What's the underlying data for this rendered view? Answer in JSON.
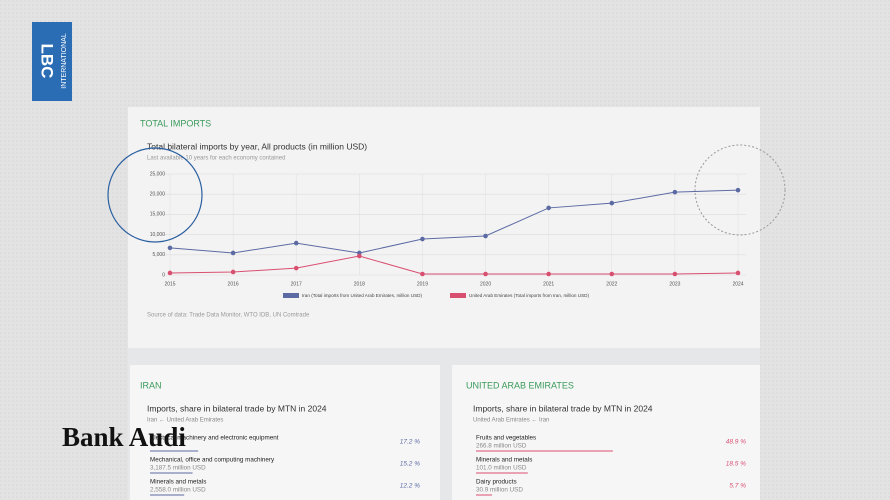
{
  "logo": {
    "top": "LBC",
    "side": "INTERNATIONAL"
  },
  "sponsor": "Bank Audi",
  "chart_data": {
    "type": "line",
    "section": "TOTAL IMPORTS",
    "title": "Total bilateral imports by year, All products (in million USD)",
    "subtitle": "Last available 10 years for each economy contained",
    "source": "Source of data: Trade Data Monitor, WTO IDB, UN Comtrade",
    "categories": [
      "2015",
      "2016",
      "2017",
      "2018",
      "2019",
      "2020",
      "2021",
      "2022",
      "2023",
      "2024"
    ],
    "series": [
      {
        "name": "Iran (Total imports from United Arab Emirates, million USD)",
        "color": "#5c6aa3",
        "values": [
          6700,
          5450,
          7900,
          5450,
          8900,
          9650,
          16600,
          17800,
          20500,
          21000
        ]
      },
      {
        "name": "United Arab Emirates (Total imports from Iran, million USD)",
        "color": "#d94f6f",
        "values": [
          500,
          750,
          1700,
          4700,
          250,
          250,
          250,
          250,
          250,
          500
        ]
      }
    ],
    "ylim": [
      0,
      25000
    ],
    "yticks": [
      0,
      {
        "value": 5000,
        "label": "5,000"
      },
      {
        "value": 10000,
        "label": "10,000"
      },
      {
        "value": 15000,
        "label": "15,000"
      },
      {
        "value": 20000,
        "label": "20,000"
      },
      {
        "value": 25000,
        "label": "25,000"
      }
    ],
    "grid": true
  },
  "panels": [
    {
      "title": "IRAN",
      "heading": "Imports, share in bilateral trade by MTN in 2024",
      "route": "Iran ← United Arab Emirates",
      "color": "#5c6aa3",
      "items": [
        {
          "name": "Electrical machinery and electronic equipment",
          "share": "17.2 %"
        },
        {
          "name": "Mechanical, office and computing machinery",
          "value": "3,187.5 million USD",
          "share": "15.2 %"
        },
        {
          "name": "Minerals and metals",
          "value": "2,558.0 million USD",
          "share": "12.2 %"
        }
      ]
    },
    {
      "title": "UNITED ARAB EMIRATES",
      "heading": "Imports, share in bilateral trade by MTN in 2024",
      "route": "United Arab Emirates ← Iran",
      "color": "#d94f6f",
      "items": [
        {
          "name": "Fruits and vegetables",
          "value": "266.8 million USD",
          "share": "48.9 %"
        },
        {
          "name": "Minerals and metals",
          "value": "101.0 million USD",
          "share": "18.5 %"
        },
        {
          "name": "Dairy products",
          "value": "30.9 million USD",
          "share": "5.7 %"
        }
      ]
    }
  ]
}
